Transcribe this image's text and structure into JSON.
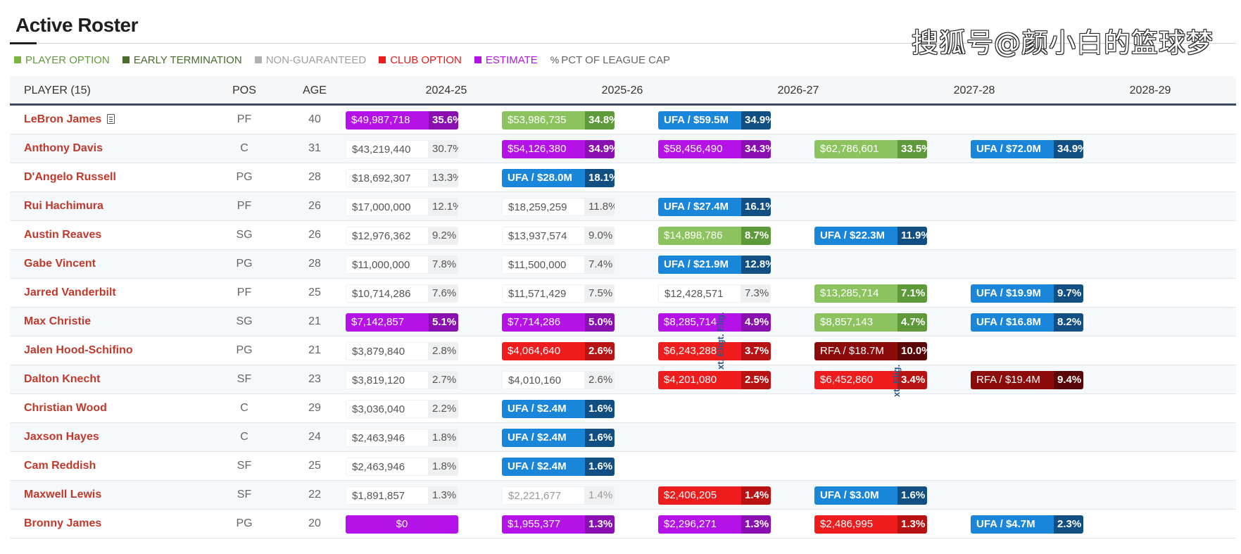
{
  "title": "Active Roster",
  "watermark": "搜狐号@颜小白的篮球梦",
  "legend": [
    {
      "label": "PLAYER OPTION",
      "color": "#7cb342",
      "textColor": "#5f9a3a"
    },
    {
      "label": "EARLY TERMINATION",
      "color": "#4a6b2e",
      "textColor": "#4a6b2e"
    },
    {
      "label": "NON-GUARANTEED",
      "color": "#b0b0b0",
      "textColor": "#a0a0a0"
    },
    {
      "label": "CLUB OPTION",
      "color": "#ee1c1c",
      "textColor": "#e31b1b"
    },
    {
      "label": "ESTIMATE",
      "color": "#b412e6",
      "textColor": "#b412e6"
    }
  ],
  "legend_pct": {
    "icon": "%",
    "label": "PCT OF LEAGUE CAP"
  },
  "headers": {
    "player": "PLAYER (15)",
    "pos": "POS",
    "age": "AGE",
    "seasons": [
      "2024-25",
      "2025-26",
      "2026-27",
      "2027-28",
      "2028-29"
    ]
  },
  "eligibility_labels": [
    "xt. Eligt. Elig.",
    "xt. Elig."
  ],
  "players": [
    {
      "name": "LeBron James",
      "doc": true,
      "pos": "PF",
      "age": "40",
      "cells": [
        {
          "t": "est",
          "amt": "$49,987,718",
          "pct": "35.6%"
        },
        {
          "t": "po",
          "amt": "$53,986,735",
          "pct": "34.8%"
        },
        {
          "t": "ufa",
          "amt": "UFA / $59.5M",
          "pct": "34.9%"
        },
        null,
        null
      ]
    },
    {
      "name": "Anthony Davis",
      "pos": "C",
      "age": "31",
      "cells": [
        {
          "t": "plain",
          "amt": "$43,219,440",
          "pct": "30.7%"
        },
        {
          "t": "est",
          "amt": "$54,126,380",
          "pct": "34.9%"
        },
        {
          "t": "est",
          "amt": "$58,456,490",
          "pct": "34.3%"
        },
        {
          "t": "po",
          "amt": "$62,786,601",
          "pct": "33.5%"
        },
        {
          "t": "ufa",
          "amt": "UFA / $72.0M",
          "pct": "34.9%"
        }
      ]
    },
    {
      "name": "D'Angelo Russell",
      "pos": "PG",
      "age": "28",
      "cells": [
        {
          "t": "plain",
          "amt": "$18,692,307",
          "pct": "13.3%"
        },
        {
          "t": "ufa",
          "amt": "UFA / $28.0M",
          "pct": "18.1%"
        },
        null,
        null,
        null
      ]
    },
    {
      "name": "Rui Hachimura",
      "pos": "PF",
      "age": "26",
      "cells": [
        {
          "t": "plain",
          "amt": "$17,000,000",
          "pct": "12.1%"
        },
        {
          "t": "plain",
          "amt": "$18,259,259",
          "pct": "11.8%"
        },
        {
          "t": "ufa",
          "amt": "UFA / $27.4M",
          "pct": "16.1%"
        },
        null,
        null
      ]
    },
    {
      "name": "Austin Reaves",
      "pos": "SG",
      "age": "26",
      "cells": [
        {
          "t": "plain",
          "amt": "$12,976,362",
          "pct": "9.2%"
        },
        {
          "t": "plain",
          "amt": "$13,937,574",
          "pct": "9.0%"
        },
        {
          "t": "po",
          "amt": "$14,898,786",
          "pct": "8.7%"
        },
        {
          "t": "ufa",
          "amt": "UFA / $22.3M",
          "pct": "11.9%"
        },
        null
      ]
    },
    {
      "name": "Gabe Vincent",
      "pos": "PG",
      "age": "28",
      "cells": [
        {
          "t": "plain",
          "amt": "$11,000,000",
          "pct": "7.8%"
        },
        {
          "t": "plain",
          "amt": "$11,500,000",
          "pct": "7.4%"
        },
        {
          "t": "ufa",
          "amt": "UFA / $21.9M",
          "pct": "12.8%"
        },
        null,
        null
      ]
    },
    {
      "name": "Jarred Vanderbilt",
      "pos": "PF",
      "age": "25",
      "cells": [
        {
          "t": "plain",
          "amt": "$10,714,286",
          "pct": "7.6%"
        },
        {
          "t": "plain",
          "amt": "$11,571,429",
          "pct": "7.5%"
        },
        {
          "t": "plain",
          "amt": "$12,428,571",
          "pct": "7.3%"
        },
        {
          "t": "po",
          "amt": "$13,285,714",
          "pct": "7.1%"
        },
        {
          "t": "ufa",
          "amt": "UFA / $19.9M",
          "pct": "9.7%"
        }
      ]
    },
    {
      "name": "Max Christie",
      "pos": "SG",
      "age": "21",
      "cells": [
        {
          "t": "est",
          "amt": "$7,142,857",
          "pct": "5.1%"
        },
        {
          "t": "est",
          "amt": "$7,714,286",
          "pct": "5.0%"
        },
        {
          "t": "est",
          "amt": "$8,285,714",
          "pct": "4.9%"
        },
        {
          "t": "po",
          "amt": "$8,857,143",
          "pct": "4.7%"
        },
        {
          "t": "ufa",
          "amt": "UFA / $16.8M",
          "pct": "8.2%"
        }
      ]
    },
    {
      "name": "Jalen Hood-Schifino",
      "pos": "PG",
      "age": "21",
      "cells": [
        {
          "t": "plain",
          "amt": "$3,879,840",
          "pct": "2.8%"
        },
        {
          "t": "club",
          "amt": "$4,064,640",
          "pct": "2.6%"
        },
        {
          "t": "club",
          "amt": "$6,243,288",
          "pct": "3.7%"
        },
        {
          "t": "rfa",
          "amt": "RFA / $18.7M",
          "pct": "10.0%"
        },
        null
      ]
    },
    {
      "name": "Dalton Knecht",
      "pos": "SF",
      "age": "23",
      "cells": [
        {
          "t": "plain",
          "amt": "$3,819,120",
          "pct": "2.7%"
        },
        {
          "t": "plain",
          "amt": "$4,010,160",
          "pct": "2.6%"
        },
        {
          "t": "club",
          "amt": "$4,201,080",
          "pct": "2.5%"
        },
        {
          "t": "club",
          "amt": "$6,452,860",
          "pct": "3.4%"
        },
        {
          "t": "rfa",
          "amt": "RFA / $19.4M",
          "pct": "9.4%"
        }
      ]
    },
    {
      "name": "Christian Wood",
      "pos": "C",
      "age": "29",
      "cells": [
        {
          "t": "plain",
          "amt": "$3,036,040",
          "pct": "2.2%"
        },
        {
          "t": "ufa",
          "amt": "UFA / $2.4M",
          "pct": "1.6%"
        },
        null,
        null,
        null
      ]
    },
    {
      "name": "Jaxson Hayes",
      "pos": "C",
      "age": "24",
      "cells": [
        {
          "t": "plain",
          "amt": "$2,463,946",
          "pct": "1.8%"
        },
        {
          "t": "ufa",
          "amt": "UFA / $2.4M",
          "pct": "1.6%"
        },
        null,
        null,
        null
      ]
    },
    {
      "name": "Cam Reddish",
      "pos": "SF",
      "age": "25",
      "cells": [
        {
          "t": "plain",
          "amt": "$2,463,946",
          "pct": "1.8%"
        },
        {
          "t": "ufa",
          "amt": "UFA / $2.4M",
          "pct": "1.6%"
        },
        null,
        null,
        null
      ]
    },
    {
      "name": "Maxwell Lewis",
      "pos": "SF",
      "age": "22",
      "cells": [
        {
          "t": "plain",
          "amt": "$1,891,857",
          "pct": "1.3%"
        },
        {
          "t": "ng",
          "amt": "$2,221,677",
          "pct": "1.4%"
        },
        {
          "t": "club",
          "amt": "$2,406,205",
          "pct": "1.4%"
        },
        {
          "t": "ufa",
          "amt": "UFA / $3.0M",
          "pct": "1.6%"
        },
        null
      ]
    },
    {
      "name": "Bronny James",
      "pos": "PG",
      "age": "20",
      "cells": [
        {
          "t": "est",
          "amt": "$0",
          "pct": "",
          "center": true
        },
        {
          "t": "est",
          "amt": "$1,955,377",
          "pct": "1.3%"
        },
        {
          "t": "est",
          "amt": "$2,296,271",
          "pct": "1.3%"
        },
        {
          "t": "club",
          "amt": "$2,486,995",
          "pct": "1.3%"
        },
        {
          "t": "ufa",
          "amt": "UFA / $4.7M",
          "pct": "2.3%"
        }
      ]
    }
  ]
}
